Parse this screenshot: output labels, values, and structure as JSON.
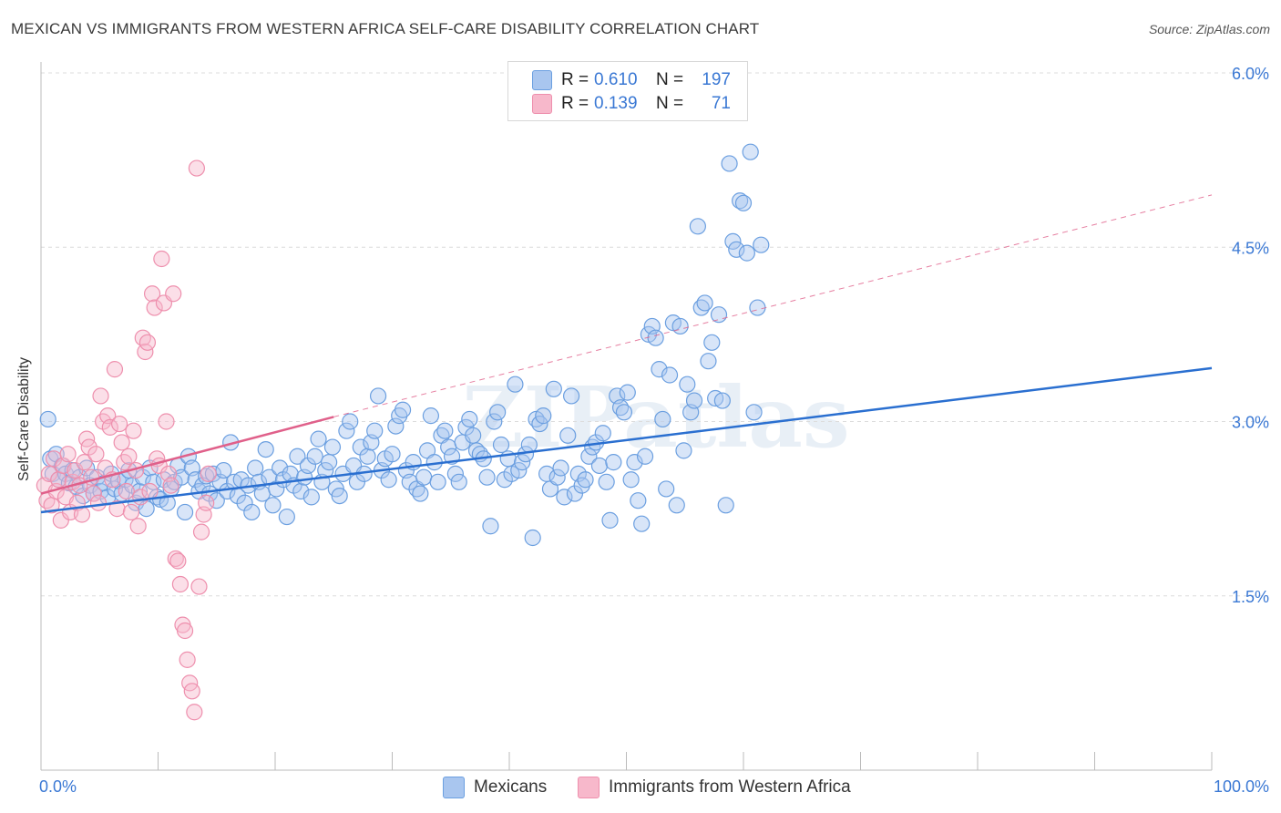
{
  "title": "MEXICAN VS IMMIGRANTS FROM WESTERN AFRICA SELF-CARE DISABILITY CORRELATION CHART",
  "source": "Source: ZipAtlas.com",
  "watermark": "ZIPatlas",
  "legend": {
    "rows": [
      {
        "r_label": "R =",
        "r_value": "0.610",
        "n_label": "N =",
        "n_value": "197",
        "color": "#a9c6ef"
      },
      {
        "r_label": "R =",
        "r_value": "0.139",
        "n_label": "N =",
        "n_value": "71",
        "color": "#f7b8cb"
      }
    ]
  },
  "bottom_legend": [
    {
      "label": "Mexicans",
      "color": "#a9c6ef"
    },
    {
      "label": "Immigrants from Western Africa",
      "color": "#f7b8cb"
    }
  ],
  "chart_data": {
    "type": "scatter",
    "title": "MEXICAN VS IMMIGRANTS FROM WESTERN AFRICA SELF-CARE DISABILITY CORRELATION CHART",
    "ylabel": "Self-Care Disability",
    "xlabel": "",
    "xlim": [
      0,
      100
    ],
    "ylim": [
      0.0,
      6.0
    ],
    "x_tick_labels": [
      "0.0%",
      "100.0%"
    ],
    "y_ticks": [
      1.5,
      3.0,
      4.5,
      6.0
    ],
    "y_tick_labels": [
      "1.5%",
      "3.0%",
      "4.5%",
      "6.0%"
    ],
    "grid": "horizontal dashed",
    "legend_position": "top-center",
    "series": [
      {
        "name": "Mexicans",
        "color": "#6b9fe0",
        "fill": "#a9c6ef",
        "trend": {
          "x": [
            0,
            100
          ],
          "y": [
            2.22,
            3.46
          ],
          "style": "solid",
          "color": "#2a6fd0"
        },
        "points": [
          [
            0.6,
            3.02
          ],
          [
            0.8,
            2.68
          ],
          [
            1.0,
            2.55
          ],
          [
            1.3,
            2.72
          ],
          [
            1.5,
            2.5
          ],
          [
            1.8,
            2.62
          ],
          [
            2.1,
            2.55
          ],
          [
            2.4,
            2.47
          ],
          [
            2.7,
            2.58
          ],
          [
            3.0,
            2.44
          ],
          [
            3.3,
            2.52
          ],
          [
            3.6,
            2.36
          ],
          [
            3.9,
            2.6
          ],
          [
            4.2,
            2.45
          ],
          [
            4.5,
            2.38
          ],
          [
            4.8,
            2.52
          ],
          [
            5.1,
            2.4
          ],
          [
            5.4,
            2.47
          ],
          [
            5.7,
            2.35
          ],
          [
            6.0,
            2.55
          ],
          [
            6.3,
            2.42
          ],
          [
            6.6,
            2.49
          ],
          [
            6.9,
            2.38
          ],
          [
            7.2,
            2.5
          ],
          [
            7.5,
            2.58
          ],
          [
            7.8,
            2.45
          ],
          [
            8.1,
            2.3
          ],
          [
            8.4,
            2.4
          ],
          [
            8.7,
            2.52
          ],
          [
            9.0,
            2.25
          ],
          [
            9.3,
            2.6
          ],
          [
            9.6,
            2.48
          ],
          [
            9.9,
            2.35
          ],
          [
            10.2,
            2.33
          ],
          [
            10.5,
            2.5
          ],
          [
            10.8,
            2.3
          ],
          [
            11.1,
            2.42
          ],
          [
            11.4,
            2.48
          ],
          [
            11.7,
            2.62
          ],
          [
            12.0,
            2.52
          ],
          [
            12.3,
            2.22
          ],
          [
            12.6,
            2.7
          ],
          [
            12.9,
            2.6
          ],
          [
            13.2,
            2.5
          ],
          [
            13.5,
            2.4
          ],
          [
            13.8,
            2.45
          ],
          [
            14.1,
            2.53
          ],
          [
            14.4,
            2.38
          ],
          [
            14.7,
            2.55
          ],
          [
            15.0,
            2.32
          ],
          [
            15.3,
            2.48
          ],
          [
            15.6,
            2.58
          ],
          [
            15.9,
            2.4
          ],
          [
            16.2,
            2.82
          ],
          [
            16.5,
            2.48
          ],
          [
            16.8,
            2.36
          ],
          [
            17.1,
            2.5
          ],
          [
            17.4,
            2.3
          ],
          [
            17.7,
            2.45
          ],
          [
            18.0,
            2.22
          ],
          [
            18.3,
            2.6
          ],
          [
            18.6,
            2.48
          ],
          [
            18.9,
            2.38
          ],
          [
            19.2,
            2.76
          ],
          [
            19.5,
            2.52
          ],
          [
            19.8,
            2.28
          ],
          [
            20.1,
            2.42
          ],
          [
            20.4,
            2.6
          ],
          [
            20.7,
            2.5
          ],
          [
            21.0,
            2.18
          ],
          [
            21.3,
            2.55
          ],
          [
            21.6,
            2.45
          ],
          [
            21.9,
            2.7
          ],
          [
            22.2,
            2.4
          ],
          [
            22.5,
            2.52
          ],
          [
            22.8,
            2.62
          ],
          [
            23.1,
            2.35
          ],
          [
            23.4,
            2.7
          ],
          [
            23.7,
            2.85
          ],
          [
            24.0,
            2.48
          ],
          [
            24.3,
            2.58
          ],
          [
            24.6,
            2.65
          ],
          [
            24.9,
            2.78
          ],
          [
            25.2,
            2.42
          ],
          [
            25.5,
            2.36
          ],
          [
            25.8,
            2.55
          ],
          [
            26.1,
            2.92
          ],
          [
            26.4,
            3.0
          ],
          [
            26.7,
            2.62
          ],
          [
            27.0,
            2.48
          ],
          [
            27.3,
            2.78
          ],
          [
            27.6,
            2.55
          ],
          [
            27.9,
            2.7
          ],
          [
            28.2,
            2.82
          ],
          [
            28.5,
            2.92
          ],
          [
            28.8,
            3.22
          ],
          [
            29.1,
            2.58
          ],
          [
            29.4,
            2.68
          ],
          [
            29.7,
            2.5
          ],
          [
            30.0,
            2.72
          ],
          [
            30.3,
            2.96
          ],
          [
            30.6,
            3.05
          ],
          [
            30.9,
            3.1
          ],
          [
            31.2,
            2.58
          ],
          [
            31.5,
            2.48
          ],
          [
            31.8,
            2.65
          ],
          [
            32.1,
            2.42
          ],
          [
            32.4,
            2.38
          ],
          [
            32.7,
            2.52
          ],
          [
            33.0,
            2.75
          ],
          [
            33.3,
            3.05
          ],
          [
            33.6,
            2.65
          ],
          [
            33.9,
            2.48
          ],
          [
            34.2,
            2.88
          ],
          [
            34.5,
            2.92
          ],
          [
            34.8,
            2.78
          ],
          [
            35.1,
            2.7
          ],
          [
            35.4,
            2.55
          ],
          [
            35.7,
            2.48
          ],
          [
            36.0,
            2.82
          ],
          [
            36.3,
            2.95
          ],
          [
            36.6,
            3.02
          ],
          [
            36.9,
            2.88
          ],
          [
            37.2,
            2.75
          ],
          [
            37.5,
            2.72
          ],
          [
            37.8,
            2.68
          ],
          [
            38.1,
            2.52
          ],
          [
            38.4,
            2.1
          ],
          [
            38.7,
            3.0
          ],
          [
            39.0,
            3.08
          ],
          [
            39.3,
            2.8
          ],
          [
            39.6,
            2.5
          ],
          [
            39.9,
            2.68
          ],
          [
            40.2,
            2.55
          ],
          [
            40.5,
            3.32
          ],
          [
            40.8,
            2.58
          ],
          [
            41.1,
            2.65
          ],
          [
            41.4,
            2.72
          ],
          [
            41.7,
            2.8
          ],
          [
            42.0,
            2.0
          ],
          [
            42.3,
            3.02
          ],
          [
            42.6,
            2.98
          ],
          [
            42.9,
            3.05
          ],
          [
            43.2,
            2.55
          ],
          [
            43.5,
            2.42
          ],
          [
            43.8,
            3.28
          ],
          [
            44.1,
            2.52
          ],
          [
            44.4,
            2.6
          ],
          [
            44.7,
            2.35
          ],
          [
            45.0,
            2.88
          ],
          [
            45.3,
            3.22
          ],
          [
            45.6,
            2.38
          ],
          [
            45.9,
            2.55
          ],
          [
            46.2,
            2.45
          ],
          [
            46.5,
            2.5
          ],
          [
            46.8,
            2.7
          ],
          [
            47.1,
            2.78
          ],
          [
            47.4,
            2.82
          ],
          [
            47.7,
            2.62
          ],
          [
            48.0,
            2.9
          ],
          [
            48.3,
            2.48
          ],
          [
            48.6,
            2.15
          ],
          [
            48.9,
            2.65
          ],
          [
            49.2,
            3.22
          ],
          [
            49.5,
            3.12
          ],
          [
            49.8,
            3.08
          ],
          [
            50.1,
            3.25
          ],
          [
            50.4,
            2.5
          ],
          [
            50.7,
            2.65
          ],
          [
            51.0,
            2.32
          ],
          [
            51.3,
            2.12
          ],
          [
            51.6,
            2.7
          ],
          [
            51.9,
            3.75
          ],
          [
            52.2,
            3.82
          ],
          [
            52.5,
            3.72
          ],
          [
            52.8,
            3.45
          ],
          [
            53.1,
            3.02
          ],
          [
            53.4,
            2.42
          ],
          [
            53.7,
            3.4
          ],
          [
            54.0,
            3.85
          ],
          [
            54.3,
            2.28
          ],
          [
            54.6,
            3.82
          ],
          [
            54.9,
            2.75
          ],
          [
            55.2,
            3.32
          ],
          [
            55.5,
            3.08
          ],
          [
            55.8,
            3.18
          ],
          [
            56.1,
            4.68
          ],
          [
            56.4,
            3.98
          ],
          [
            56.7,
            4.02
          ],
          [
            57.0,
            3.52
          ],
          [
            57.3,
            3.68
          ],
          [
            57.6,
            3.2
          ],
          [
            57.9,
            3.92
          ],
          [
            58.2,
            3.18
          ],
          [
            58.5,
            2.28
          ],
          [
            58.8,
            5.22
          ],
          [
            59.1,
            4.55
          ],
          [
            59.4,
            4.48
          ],
          [
            59.7,
            4.9
          ],
          [
            60.0,
            4.88
          ],
          [
            60.3,
            4.45
          ],
          [
            60.6,
            5.32
          ],
          [
            60.9,
            3.08
          ],
          [
            61.2,
            3.98
          ],
          [
            61.5,
            4.52
          ]
        ]
      },
      {
        "name": "Immigrants from Western Africa",
        "color": "#ee8fad",
        "fill": "#f7b8cb",
        "trend": {
          "x": [
            0,
            25
          ],
          "y": [
            2.38,
            3.04
          ],
          "style": "solid",
          "color": "#e0608a",
          "extension": {
            "x": [
              25,
              100
            ],
            "y": [
              3.04,
              4.95
            ],
            "style": "dashed"
          }
        },
        "points": [
          [
            0.3,
            2.45
          ],
          [
            0.5,
            2.32
          ],
          [
            0.7,
            2.55
          ],
          [
            0.9,
            2.28
          ],
          [
            1.1,
            2.68
          ],
          [
            1.3,
            2.4
          ],
          [
            1.5,
            2.5
          ],
          [
            1.7,
            2.15
          ],
          [
            1.9,
            2.62
          ],
          [
            2.1,
            2.35
          ],
          [
            2.3,
            2.72
          ],
          [
            2.5,
            2.22
          ],
          [
            2.7,
            2.48
          ],
          [
            2.9,
            2.58
          ],
          [
            3.1,
            2.3
          ],
          [
            3.3,
            2.45
          ],
          [
            3.5,
            2.2
          ],
          [
            3.7,
            2.65
          ],
          [
            3.9,
            2.85
          ],
          [
            4.1,
            2.78
          ],
          [
            4.3,
            2.52
          ],
          [
            4.5,
            2.38
          ],
          [
            4.7,
            2.72
          ],
          [
            4.9,
            2.3
          ],
          [
            5.1,
            3.22
          ],
          [
            5.3,
            3.0
          ],
          [
            5.5,
            2.6
          ],
          [
            5.7,
            3.05
          ],
          [
            5.9,
            2.95
          ],
          [
            6.1,
            2.5
          ],
          [
            6.3,
            3.45
          ],
          [
            6.5,
            2.25
          ],
          [
            6.7,
            2.98
          ],
          [
            6.9,
            2.82
          ],
          [
            7.1,
            2.65
          ],
          [
            7.3,
            2.4
          ],
          [
            7.5,
            2.7
          ],
          [
            7.7,
            2.22
          ],
          [
            7.9,
            2.92
          ],
          [
            8.1,
            2.58
          ],
          [
            8.3,
            2.1
          ],
          [
            8.5,
            2.35
          ],
          [
            8.7,
            3.72
          ],
          [
            8.9,
            3.6
          ],
          [
            9.1,
            3.68
          ],
          [
            9.3,
            2.4
          ],
          [
            9.5,
            4.1
          ],
          [
            9.7,
            3.98
          ],
          [
            9.9,
            2.68
          ],
          [
            10.1,
            2.62
          ],
          [
            10.3,
            4.4
          ],
          [
            10.5,
            4.02
          ],
          [
            10.7,
            3.0
          ],
          [
            10.9,
            2.55
          ],
          [
            11.1,
            2.45
          ],
          [
            11.3,
            4.1
          ],
          [
            11.5,
            1.82
          ],
          [
            11.7,
            1.8
          ],
          [
            11.9,
            1.6
          ],
          [
            12.1,
            1.25
          ],
          [
            12.3,
            1.2
          ],
          [
            12.5,
            0.95
          ],
          [
            12.7,
            0.75
          ],
          [
            12.9,
            0.68
          ],
          [
            13.1,
            0.5
          ],
          [
            13.3,
            5.18
          ],
          [
            13.5,
            1.58
          ],
          [
            13.7,
            2.05
          ],
          [
            13.9,
            2.2
          ],
          [
            14.1,
            2.3
          ],
          [
            14.3,
            2.55
          ]
        ]
      }
    ]
  }
}
